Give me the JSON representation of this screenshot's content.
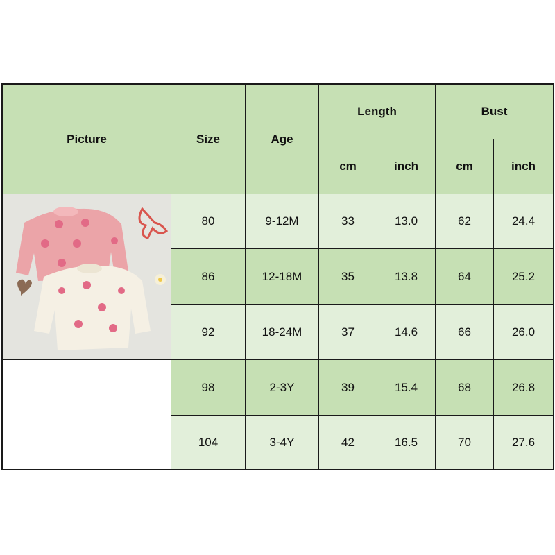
{
  "header": {
    "picture": "Picture",
    "size": "Size",
    "age": "Age",
    "length": "Length",
    "bust": "Bust",
    "length_cm": "cm",
    "length_inch": "inch",
    "bust_cm": "cm",
    "bust_inch": "inch"
  },
  "rows": [
    {
      "size": "80",
      "age": "9-12M",
      "length_cm": "33",
      "length_inch": "13.0",
      "bust_cm": "62",
      "bust_inch": "24.4"
    },
    {
      "size": "86",
      "age": "12-18M",
      "length_cm": "35",
      "length_inch": "13.8",
      "bust_cm": "64",
      "bust_inch": "25.2"
    },
    {
      "size": "92",
      "age": "18-24M",
      "length_cm": "37",
      "length_inch": "14.6",
      "bust_cm": "66",
      "bust_inch": "26.0"
    },
    {
      "size": "98",
      "age": "2-3Y",
      "length_cm": "39",
      "length_inch": "15.4",
      "bust_cm": "68",
      "bust_inch": "26.8"
    },
    {
      "size": "104",
      "age": "3-4Y",
      "length_cm": "42",
      "length_inch": "16.5",
      "bust_cm": "70",
      "bust_inch": "27.6"
    }
  ],
  "colors": {
    "header": "#c6e0b4",
    "row_light": "#e2efda",
    "row_dark": "#c6e0b4"
  },
  "picture": {
    "icon": "sweater-product-photo"
  }
}
